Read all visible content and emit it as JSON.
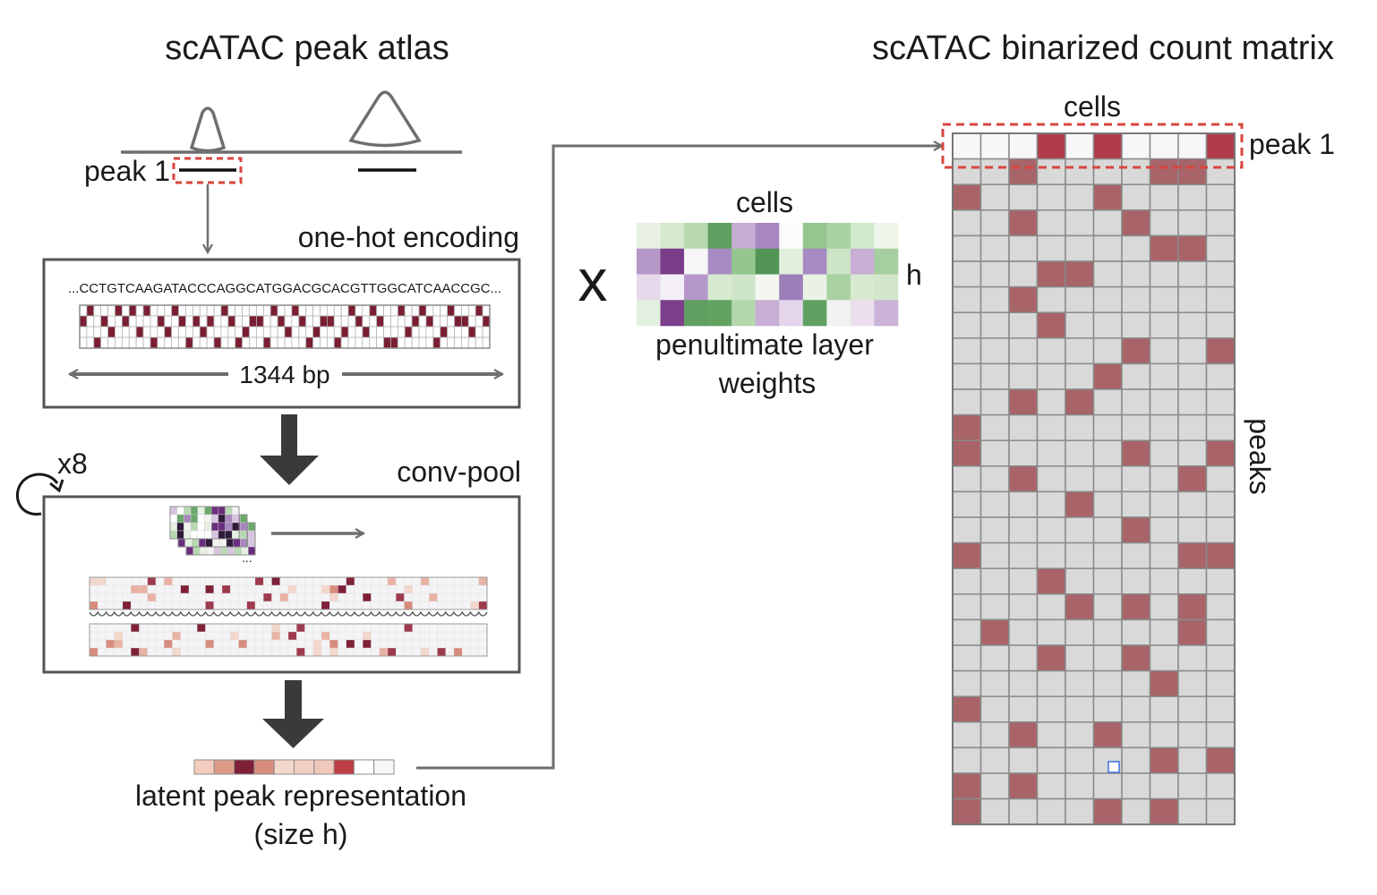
{
  "titles": {
    "atlas": "scATAC peak atlas",
    "matrix": "scATAC binarized count matrix"
  },
  "labels": {
    "peak1_left": "peak 1",
    "onehot": "one-hot encoding",
    "sequence": "...CCTGTCAAGATACCCAGGCATGGACGCACGTTGGCATCAACCGC...",
    "bp": "1344 bp",
    "x8": "x8",
    "convpool": "conv-pool",
    "ellipsis": "...",
    "latent_line1": "latent peak representation",
    "latent_line2": "(size h)",
    "times": "x",
    "weights_cells": "cells",
    "weights_h": "h",
    "weights_line1": "penultimate layer",
    "weights_line2": "weights",
    "matrix_cells": "cells",
    "matrix_peak1": "peak 1",
    "matrix_peaks": "peaks"
  },
  "colors": {
    "accessible": "#a86468",
    "accessible_peak1": "#b03a4a",
    "empty_cell": "#d9d9d9",
    "peak1_empty": "#f7f7f9",
    "grid_line": "#8a8a8a",
    "onehot_fill": "#7a1f33",
    "dashed_box": "#d9453e",
    "arrow": "#6e6e6e",
    "block_arrow": "#3a3a3a"
  },
  "onehot": {
    "columns": 58,
    "rows": 4,
    "bases": [
      "A",
      "C",
      "G",
      "T"
    ],
    "filled": [
      [
        0,
        1
      ],
      [
        1,
        0
      ],
      [
        2,
        3
      ],
      [
        3,
        1
      ],
      [
        4,
        2
      ],
      [
        5,
        0
      ],
      [
        6,
        1
      ],
      [
        7,
        0
      ],
      [
        8,
        2
      ],
      [
        9,
        0
      ],
      [
        10,
        3
      ],
      [
        11,
        1
      ],
      [
        12,
        2
      ],
      [
        13,
        0
      ],
      [
        14,
        1
      ],
      [
        15,
        3
      ],
      [
        16,
        1
      ],
      [
        17,
        2
      ],
      [
        18,
        1
      ],
      [
        19,
        3
      ],
      [
        20,
        0
      ],
      [
        21,
        1
      ],
      [
        22,
        3
      ],
      [
        23,
        2
      ],
      [
        24,
        1
      ],
      [
        25,
        1
      ],
      [
        26,
        3
      ],
      [
        27,
        0
      ],
      [
        28,
        1
      ],
      [
        29,
        2
      ],
      [
        30,
        0
      ],
      [
        31,
        1
      ],
      [
        32,
        3
      ],
      [
        33,
        2
      ],
      [
        34,
        1
      ],
      [
        35,
        1
      ],
      [
        36,
        3
      ],
      [
        37,
        2
      ],
      [
        38,
        0
      ],
      [
        39,
        1
      ],
      [
        40,
        2
      ],
      [
        41,
        0
      ],
      [
        42,
        1
      ],
      [
        43,
        3
      ],
      [
        44,
        3
      ],
      [
        45,
        0
      ],
      [
        46,
        2
      ],
      [
        47,
        1
      ],
      [
        48,
        0
      ],
      [
        49,
        1
      ],
      [
        50,
        3
      ],
      [
        51,
        2
      ],
      [
        52,
        0
      ],
      [
        53,
        1
      ],
      [
        54,
        1
      ],
      [
        55,
        2
      ],
      [
        56,
        0
      ],
      [
        57,
        1
      ]
    ]
  },
  "latent": {
    "colors": [
      "#f2cdbd",
      "#de9c87",
      "#7e2138",
      "#d88c7d",
      "#f4d8cc",
      "#f1d0c4",
      "#f1c9bb",
      "#bd3f43",
      "#ffffff",
      "#f7f7f7"
    ]
  },
  "weights": {
    "colors": [
      [
        "#e8f1e4",
        "#d6e9d0",
        "#b7d8b0",
        "#5fa060",
        "#c6acd3",
        "#a887bf",
        "#fbfbfb",
        "#94c68e",
        "#a9d2a2",
        "#d2e8cc",
        "#eef5ea"
      ],
      [
        "#b698c8",
        "#7a3d8a",
        "#f6f6f6",
        "#a88bc3",
        "#93c68d",
        "#519454",
        "#e3efdd",
        "#a68ac2",
        "#cde4c6",
        "#c9afd6",
        "#a6cf9f"
      ],
      [
        "#e6d9ec",
        "#f4eff7",
        "#b598c9",
        "#d6ead0",
        "#cfe5c9",
        "#f3f7f0",
        "#9b7fb9",
        "#e9f2e4",
        "#a9d1a2",
        "#d7ead1",
        "#d2e6cb"
      ],
      [
        "#e4f0df",
        "#7c3f8c",
        "#5fa060",
        "#62a362",
        "#b5d7ad",
        "#c8afd5",
        "#e4d5eb",
        "#5fa060",
        "#f2f2f2",
        "#ebdfee",
        "#cbb3d8"
      ]
    ]
  },
  "matrix": {
    "columns": 10,
    "rows": 26,
    "peak1_accessible": [
      3,
      5,
      9
    ],
    "accessible": [
      [
        0,
        2
      ],
      [
        0,
        7
      ],
      [
        0,
        8
      ],
      [
        1,
        0
      ],
      [
        1,
        5
      ],
      [
        2,
        2
      ],
      [
        2,
        6
      ],
      [
        3,
        7
      ],
      [
        3,
        8
      ],
      [
        4,
        3
      ],
      [
        4,
        4
      ],
      [
        5,
        2
      ],
      [
        6,
        3
      ],
      [
        7,
        6
      ],
      [
        7,
        9
      ],
      [
        8,
        5
      ],
      [
        9,
        2
      ],
      [
        9,
        4
      ],
      [
        10,
        0
      ],
      [
        11,
        0
      ],
      [
        11,
        6
      ],
      [
        11,
        9
      ],
      [
        12,
        2
      ],
      [
        12,
        8
      ],
      [
        13,
        4
      ],
      [
        14,
        6
      ],
      [
        15,
        0
      ],
      [
        15,
        8
      ],
      [
        15,
        9
      ],
      [
        16,
        3
      ],
      [
        17,
        4
      ],
      [
        17,
        6
      ],
      [
        17,
        8
      ],
      [
        18,
        1
      ],
      [
        18,
        8
      ],
      [
        19,
        3
      ],
      [
        19,
        6
      ],
      [
        20,
        7
      ],
      [
        21,
        0
      ],
      [
        22,
        2
      ],
      [
        22,
        5
      ],
      [
        23,
        7
      ],
      [
        23,
        9
      ],
      [
        24,
        0
      ],
      [
        24,
        2
      ],
      [
        25,
        0
      ],
      [
        25,
        5
      ],
      [
        25,
        7
      ]
    ],
    "selected_cell": [
      23,
      6
    ]
  }
}
